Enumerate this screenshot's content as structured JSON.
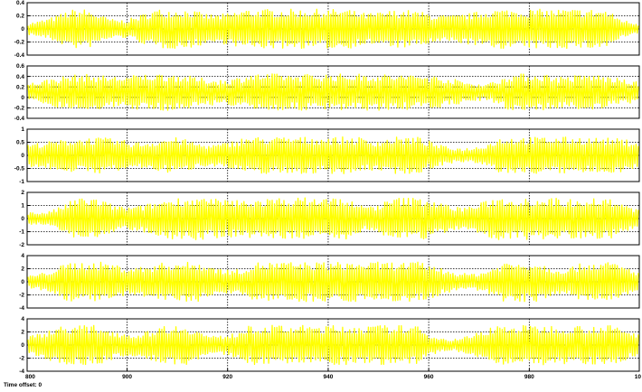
{
  "window": {
    "footer_label": "Time offset: 0"
  },
  "style": {
    "trace_color": "#ffff00",
    "axes_background": "#ffffff",
    "grid_color": "#000000"
  },
  "x_axis": {
    "min": 800,
    "max": 1000,
    "tick_labels": [
      "800",
      "900",
      "920",
      "940",
      "960",
      "980",
      "10"
    ]
  },
  "chart_data": [
    {
      "type": "line",
      "ylim": [
        -0.4,
        0.4
      ],
      "y_tick_labels": [
        "0.4",
        "0.2",
        "0",
        "-0.2",
        "-0.4"
      ],
      "amplitude": 0.3
    },
    {
      "type": "line",
      "ylim": [
        -0.4,
        0.6
      ],
      "y_tick_labels": [
        "0.6",
        "0.4",
        "0.2",
        "0",
        "-0.2",
        "-0.4"
      ],
      "amplitude": 0.35
    },
    {
      "type": "line",
      "ylim": [
        -1,
        1
      ],
      "y_tick_labels": [
        "1",
        "0.5",
        "0",
        "-0.5",
        "-1"
      ],
      "amplitude": 0.7
    },
    {
      "type": "line",
      "ylim": [
        -2,
        2
      ],
      "y_tick_labels": [
        "2",
        "1",
        "0",
        "-1",
        "-2"
      ],
      "amplitude": 1.6
    },
    {
      "type": "line",
      "ylim": [
        -4,
        4
      ],
      "y_tick_labels": [
        "4",
        "2",
        "0",
        "-2",
        "-4"
      ],
      "amplitude": 3
    },
    {
      "type": "line",
      "ylim": [
        -4,
        4
      ],
      "y_tick_labels": [
        "4",
        "2",
        "0",
        "-2",
        "-4"
      ],
      "amplitude": 3
    }
  ]
}
